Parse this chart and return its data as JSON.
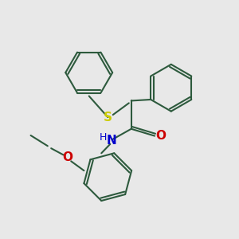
{
  "background_color": "#e8e8e8",
  "bond_color": "#2d5a3d",
  "S_color": "#cccc00",
  "N_color": "#0000cc",
  "O_color": "#cc0000",
  "line_width": 1.5,
  "figsize": [
    3.0,
    3.0
  ],
  "dpi": 100,
  "xlim": [
    0,
    10
  ],
  "ylim": [
    0,
    10
  ]
}
